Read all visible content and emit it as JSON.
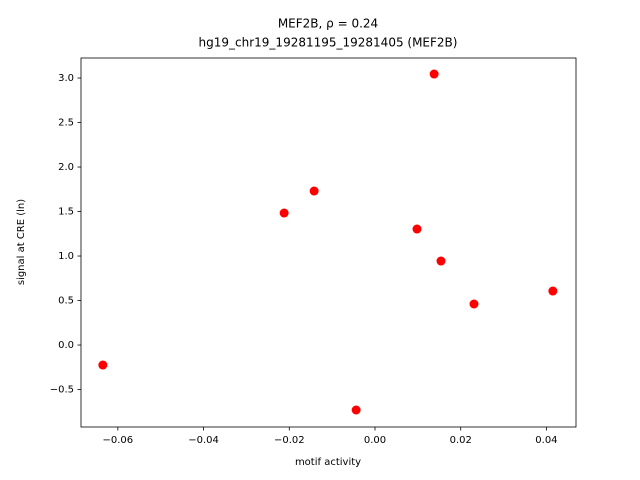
{
  "chart_data": {
    "type": "scatter",
    "title": "MEF2B, ρ = 0.24",
    "subtitle": "hg19_chr19_19281195_19281405 (MEF2B)",
    "x_label": "motif activity",
    "y_label": "signal at CRE (ln)",
    "series": [
      {
        "color": "#ff0000",
        "x": [
          -0.0635,
          -0.0212,
          -0.0142,
          -0.0044,
          0.0098,
          0.0138,
          0.0154,
          0.0231,
          0.0415
        ],
        "values": [
          -0.225,
          1.483,
          1.73,
          -0.73,
          1.303,
          3.045,
          0.944,
          0.461,
          0.607
        ]
      }
    ],
    "xlim": [
      -0.0686,
      0.0469
    ],
    "ylim": [
      -0.921,
      3.225
    ],
    "xticks": [
      {
        "value": -0.06,
        "label": "−0.06"
      },
      {
        "value": -0.04,
        "label": "−0.04"
      },
      {
        "value": -0.02,
        "label": "−0.02"
      },
      {
        "value": 0,
        "label": "0.00"
      },
      0.02,
      0.04
    ],
    "yticks": [
      {
        "value": -0.5,
        "label": "−0.5"
      },
      {
        "value": 0,
        "label": "0.0"
      },
      0.5,
      {
        "value": 1,
        "label": "1.0"
      },
      1.5,
      {
        "value": 2,
        "label": "2.0"
      },
      2.5,
      {
        "value": 3,
        "label": "3.0"
      }
    ],
    "grid": false
  }
}
